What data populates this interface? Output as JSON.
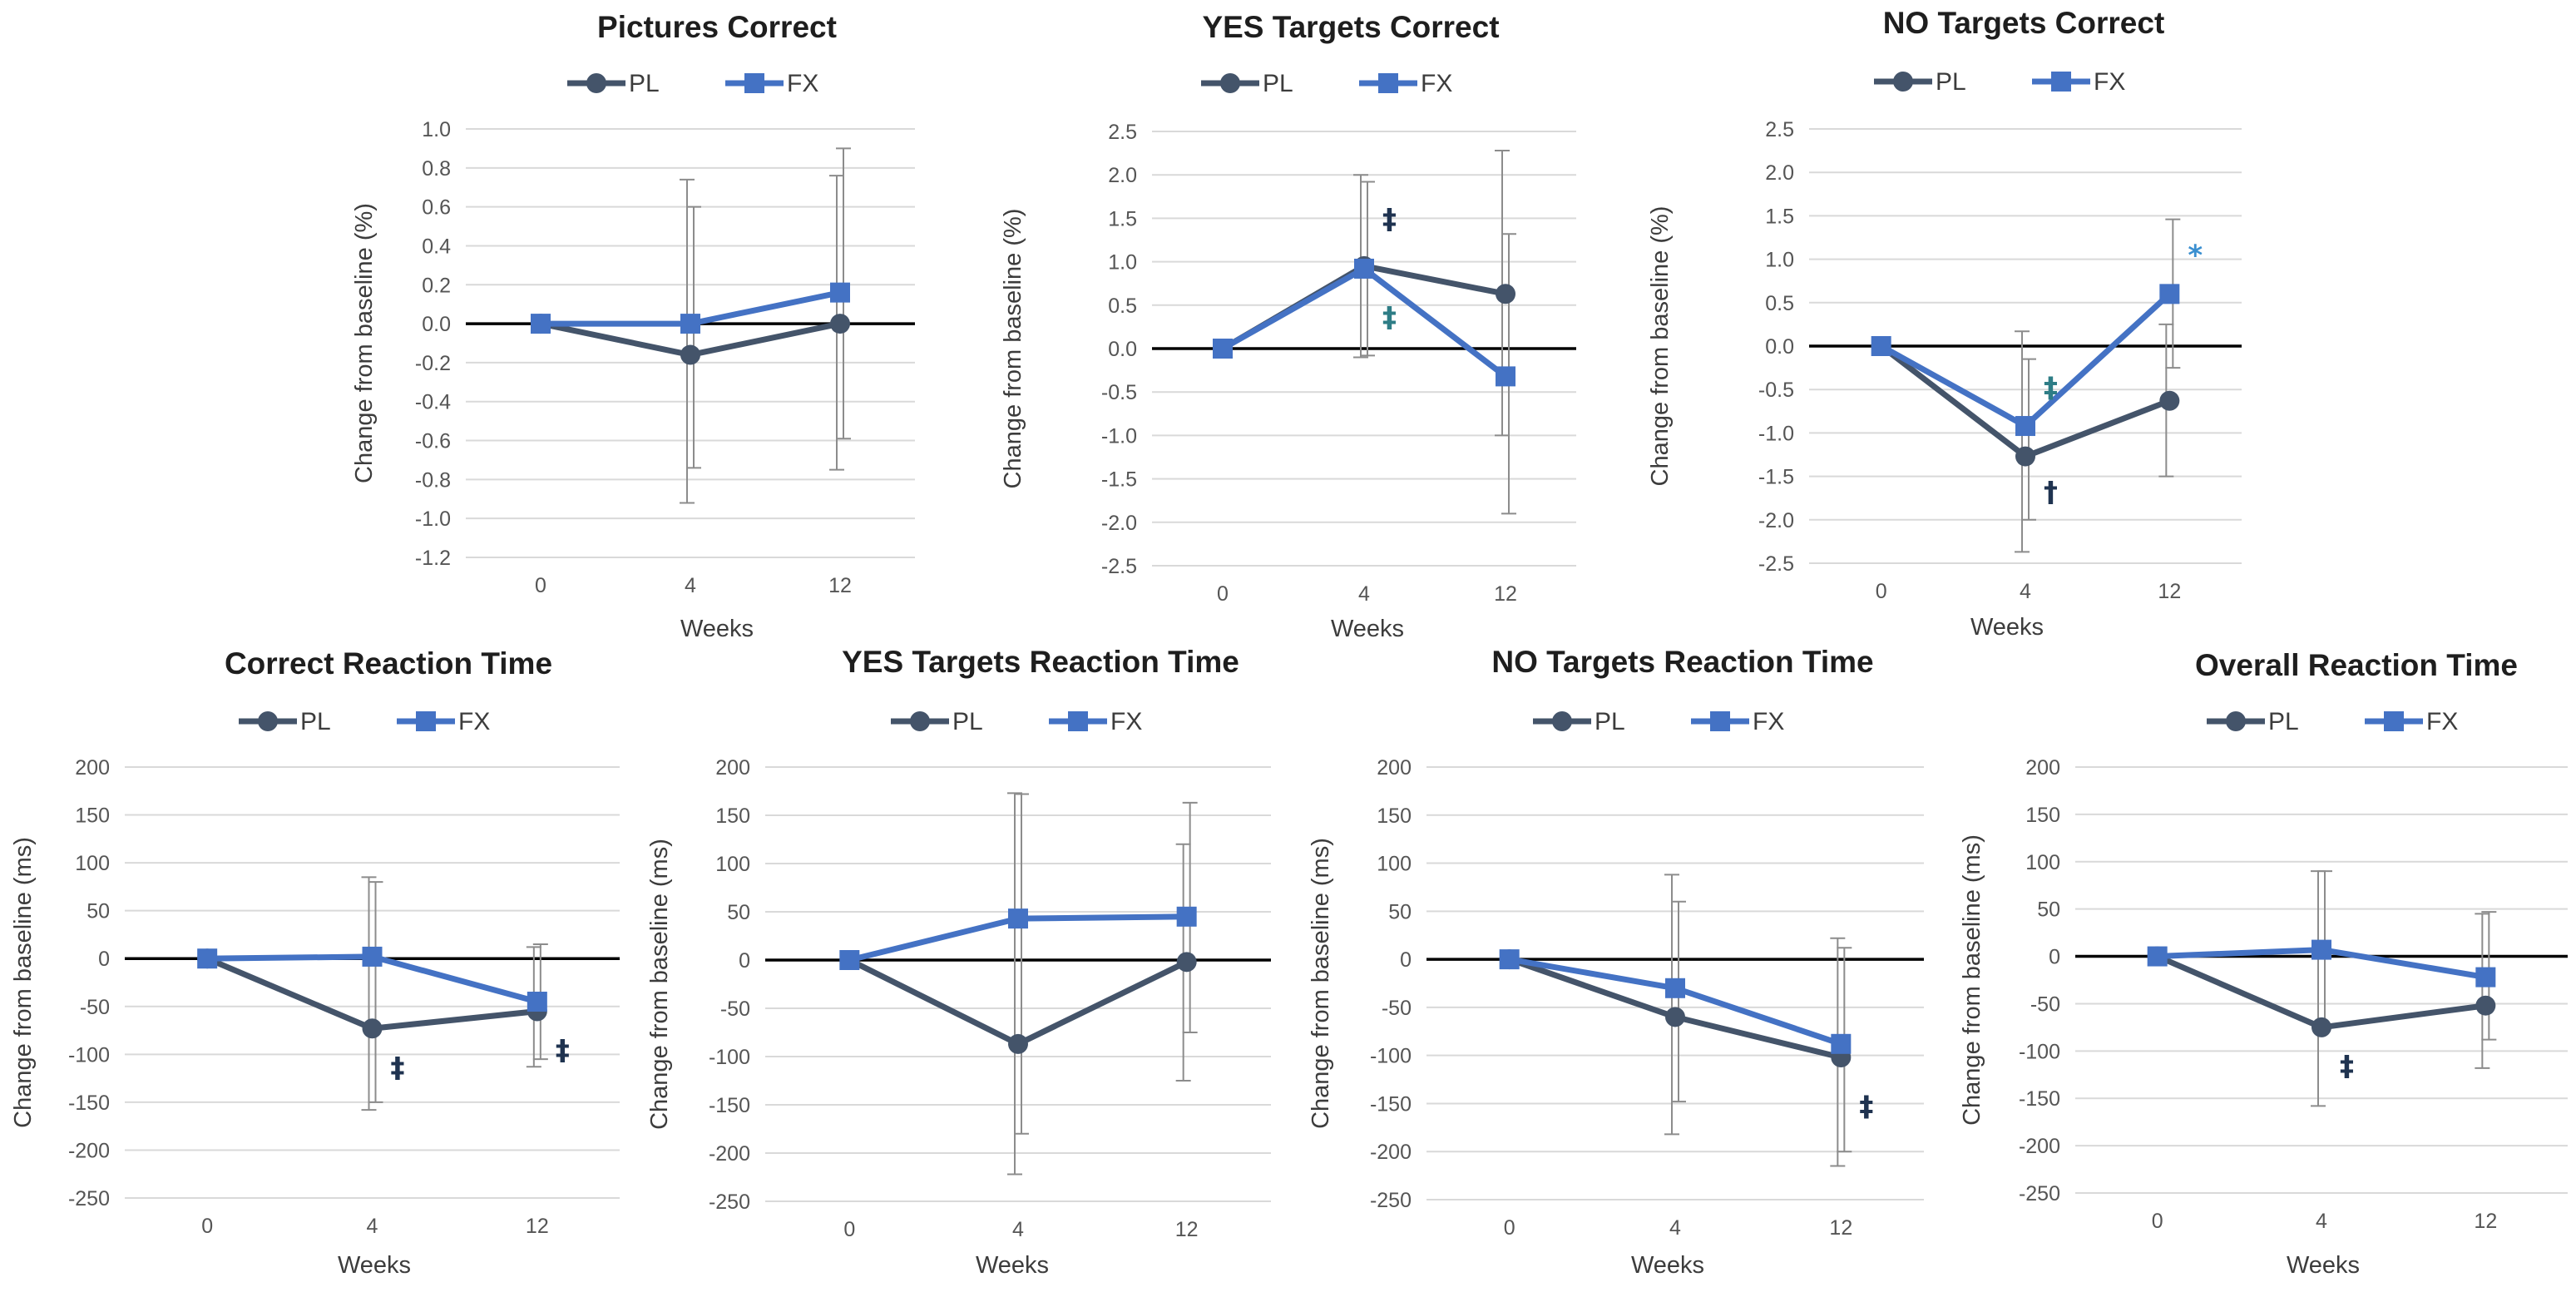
{
  "figure": {
    "colors": {
      "PL": "#44546a",
      "FX": "#4472c4",
      "zero": "#000000",
      "grid": "#d9d9d9",
      "error": "#8c8c8c",
      "annot_dark": "#1f3350",
      "annot_teal": "#2e7d86",
      "annot_blue": "#3a8fd0"
    }
  },
  "chart_data": [
    {
      "type": "line",
      "title": "Pictures Correct",
      "xlabel": "Weeks",
      "ylabel": "Change from baseline (%)",
      "categories": [
        "0",
        "4",
        "12"
      ],
      "ylim": [
        -1.2,
        1.0
      ],
      "yticks": [
        "1.0",
        "0.8",
        "0.6",
        "0.4",
        "0.2",
        "0.0",
        "-0.2",
        "-0.4",
        "-0.6",
        "-0.8",
        "-1.0",
        "-1.2"
      ],
      "legend": [
        "PL",
        "FX"
      ],
      "series": [
        {
          "name": "PL",
          "values": [
            0,
            -0.16,
            0
          ],
          "err_low": [
            0,
            -0.92,
            -0.75
          ],
          "err_high": [
            0,
            0.74,
            0.76
          ]
        },
        {
          "name": "FX",
          "values": [
            0,
            0.0,
            0.16
          ],
          "err_low": [
            0,
            -0.74,
            -0.59
          ],
          "err_high": [
            0,
            0.6,
            0.9
          ]
        }
      ],
      "annotations": []
    },
    {
      "type": "line",
      "title": "YES Targets Correct",
      "xlabel": "Weeks",
      "ylabel": "Change from baseline (%)",
      "categories": [
        "0",
        "4",
        "12"
      ],
      "ylim": [
        -2.5,
        2.5
      ],
      "yticks": [
        "2.5",
        "2.0",
        "1.5",
        "1.0",
        "0.5",
        "0.0",
        "-0.5",
        "-1.0",
        "-1.5",
        "-2.0",
        "-2.5"
      ],
      "legend": [
        "PL",
        "FX"
      ],
      "series": [
        {
          "name": "PL",
          "values": [
            0,
            0.95,
            0.63
          ],
          "err_low": [
            0,
            -0.1,
            -1.0
          ],
          "err_high": [
            0,
            2.0,
            2.28
          ]
        },
        {
          "name": "FX",
          "values": [
            0,
            0.92,
            -0.32
          ],
          "err_low": [
            0,
            -0.08,
            -1.9
          ],
          "err_high": [
            0,
            1.92,
            1.32
          ]
        }
      ],
      "annotations": [
        {
          "text": "‡",
          "series": "PL",
          "cat": 1,
          "dy": 0.55,
          "color": "annot_dark"
        },
        {
          "text": "‡",
          "series": "FX",
          "cat": 1,
          "dy": -0.55,
          "color": "annot_teal"
        }
      ]
    },
    {
      "type": "line",
      "title": "NO Targets Correct",
      "xlabel": "Weeks",
      "ylabel": "Change from baseline (%)",
      "categories": [
        "0",
        "4",
        "12"
      ],
      "ylim": [
        -2.5,
        2.5
      ],
      "yticks": [
        "2.5",
        "2.0",
        "1.5",
        "1.0",
        "0.5",
        "0.0",
        "-0.5",
        "-1.0",
        "-1.5",
        "-2.0",
        "-2.5"
      ],
      "legend": [
        "PL",
        "FX"
      ],
      "series": [
        {
          "name": "PL",
          "values": [
            0,
            -1.27,
            -0.63
          ],
          "err_low": [
            0,
            -2.37,
            -1.5
          ],
          "err_high": [
            0,
            0.17,
            0.25
          ]
        },
        {
          "name": "FX",
          "values": [
            0,
            -0.92,
            0.6
          ],
          "err_low": [
            0,
            -2.0,
            -0.25
          ],
          "err_high": [
            0,
            -0.15,
            1.46
          ]
        }
      ],
      "annotations": [
        {
          "text": "‡",
          "series": "FX",
          "cat": 1,
          "dy": 0.45,
          "color": "annot_teal"
        },
        {
          "text": "†",
          "series": "PL",
          "cat": 1,
          "dy": -0.4,
          "color": "annot_dark"
        },
        {
          "text": "*",
          "series": "FX",
          "cat": 2,
          "dy": 0.45,
          "color": "annot_blue"
        }
      ]
    },
    {
      "type": "line",
      "title": "Correct Reaction Time",
      "xlabel": "Weeks",
      "ylabel": "Change from baseline (ms)",
      "categories": [
        "0",
        "4",
        "12"
      ],
      "ylim": [
        -250,
        200
      ],
      "yticks": [
        "200",
        "150",
        "100",
        "50",
        "0",
        "-50",
        "-100",
        "-150",
        "-200",
        "-250"
      ],
      "legend": [
        "PL",
        "FX"
      ],
      "series": [
        {
          "name": "PL",
          "values": [
            0,
            -73,
            -55
          ],
          "err_low": [
            0,
            -158,
            -113
          ],
          "err_high": [
            0,
            85,
            12
          ]
        },
        {
          "name": "FX",
          "values": [
            0,
            2,
            -45
          ],
          "err_low": [
            0,
            -150,
            -105
          ],
          "err_high": [
            0,
            80,
            15
          ]
        }
      ],
      "annotations": [
        {
          "text": "‡",
          "series": "PL",
          "cat": 1,
          "dy": -40,
          "color": "annot_dark"
        },
        {
          "text": "‡",
          "series": "PL",
          "cat": 2,
          "dy": -40,
          "color": "annot_dark"
        }
      ]
    },
    {
      "type": "line",
      "title": "YES Targets Reaction Time",
      "xlabel": "Weeks",
      "ylabel": "Change from baseline (ms)",
      "categories": [
        "0",
        "4",
        "12"
      ],
      "ylim": [
        -250,
        200
      ],
      "yticks": [
        "200",
        "150",
        "100",
        "50",
        "0",
        "-50",
        "-100",
        "-150",
        "-200",
        "-250"
      ],
      "legend": [
        "PL",
        "FX"
      ],
      "series": [
        {
          "name": "PL",
          "values": [
            0,
            -87,
            -2
          ],
          "err_low": [
            0,
            -222,
            -125
          ],
          "err_high": [
            0,
            173,
            120
          ]
        },
        {
          "name": "FX",
          "values": [
            0,
            43,
            45
          ],
          "err_low": [
            0,
            -180,
            -75
          ],
          "err_high": [
            0,
            172,
            163
          ]
        }
      ],
      "annotations": []
    },
    {
      "type": "line",
      "title": "NO Targets Reaction Time",
      "xlabel": "Weeks",
      "ylabel": "Change from baseline (ms)",
      "categories": [
        "0",
        "4",
        "12"
      ],
      "ylim": [
        -250,
        200
      ],
      "yticks": [
        "200",
        "150",
        "100",
        "50",
        "0",
        "-50",
        "-100",
        "-150",
        "-200",
        "-250"
      ],
      "legend": [
        "PL",
        "FX"
      ],
      "series": [
        {
          "name": "PL",
          "values": [
            0,
            -60,
            -102
          ],
          "err_low": [
            0,
            -182,
            -215
          ],
          "err_high": [
            0,
            88,
            22
          ]
        },
        {
          "name": "FX",
          "values": [
            0,
            -30,
            -88
          ],
          "err_low": [
            0,
            -148,
            -200
          ],
          "err_high": [
            0,
            60,
            12
          ]
        }
      ],
      "annotations": [
        {
          "text": "‡",
          "series": "PL",
          "cat": 2,
          "dy": -50,
          "color": "annot_dark"
        }
      ]
    },
    {
      "type": "line",
      "title": "Overall Reaction Time",
      "xlabel": "Weeks",
      "ylabel": "Change from baseline (ms)",
      "categories": [
        "0",
        "4",
        "12"
      ],
      "ylim": [
        -250,
        200
      ],
      "yticks": [
        "200",
        "150",
        "100",
        "50",
        "0",
        "-50",
        "-100",
        "-150",
        "-200",
        "-250"
      ],
      "legend": [
        "PL",
        "FX"
      ],
      "series": [
        {
          "name": "PL",
          "values": [
            0,
            -75,
            -52
          ],
          "err_low": [
            0,
            -158,
            -118
          ],
          "err_high": [
            0,
            90,
            45
          ]
        },
        {
          "name": "FX",
          "values": [
            0,
            7,
            -22
          ],
          "err_low": [
            0,
            -75,
            -88
          ],
          "err_high": [
            0,
            90,
            47
          ]
        }
      ],
      "annotations": [
        {
          "text": "‡",
          "series": "PL",
          "cat": 1,
          "dy": -40,
          "color": "annot_dark"
        }
      ]
    }
  ]
}
